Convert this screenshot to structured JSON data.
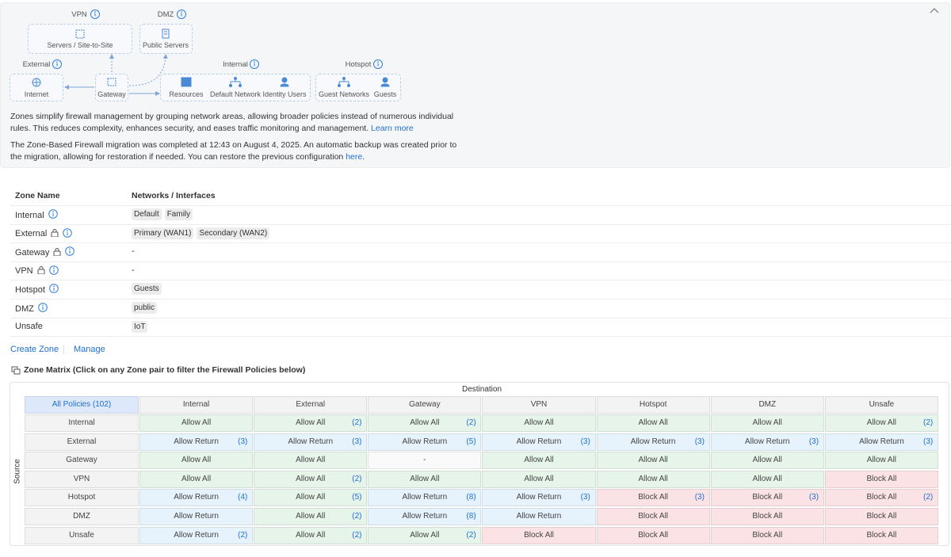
{
  "diagram": {
    "vpn": {
      "label": "VPN",
      "item": "Servers / Site-to-Site"
    },
    "dmz": {
      "label": "DMZ",
      "item": "Public Servers"
    },
    "external": {
      "label": "External",
      "item": "Internet"
    },
    "gateway": {
      "item": "Gateway"
    },
    "internal": {
      "label": "Internal",
      "items": [
        "Resources",
        "Default Network",
        "Identity Users"
      ]
    },
    "hotspot": {
      "label": "Hotspot",
      "items": [
        "Guest Networks",
        "Guests"
      ]
    }
  },
  "intro": {
    "text": "Zones simplify firewall management by grouping network areas, allowing broader policies instead of numerous individual rules. This reduces complexity, enhances security, and eases traffic monitoring and management.",
    "link": "Learn more"
  },
  "migration": {
    "text": "The Zone-Based Firewall migration was completed at 12:43 on August 4, 2025. An automatic backup was created prior to the migration, allowing for restoration if needed. You can restore the previous configuration",
    "link": "here",
    "after": "."
  },
  "zones": {
    "headers": [
      "Zone Name",
      "Networks / Interfaces"
    ],
    "rows": [
      {
        "name": "Internal",
        "locked": false,
        "info": true,
        "networks": [
          "Default",
          "Family"
        ]
      },
      {
        "name": "External",
        "locked": true,
        "info": true,
        "networks": [
          "Primary (WAN1)",
          "Secondary (WAN2)"
        ]
      },
      {
        "name": "Gateway",
        "locked": true,
        "info": true,
        "networks": "-"
      },
      {
        "name": "VPN",
        "locked": true,
        "info": true,
        "networks": "-"
      },
      {
        "name": "Hotspot",
        "locked": false,
        "info": true,
        "networks": [
          "Guests"
        ]
      },
      {
        "name": "DMZ",
        "locked": false,
        "info": true,
        "networks": [
          "public"
        ]
      },
      {
        "name": "Unsafe",
        "locked": false,
        "info": false,
        "networks": [
          "IoT"
        ]
      }
    ]
  },
  "actions": [
    "Create Zone",
    "Manage"
  ],
  "matrix": {
    "title": "Zone Matrix (Click on any Zone pair to filter the Firewall Policies below)",
    "all_policies": "All Policies (102)",
    "destination": "Destination",
    "source": "Source",
    "columns": [
      "Internal",
      "External",
      "Gateway",
      "VPN",
      "Hotspot",
      "DMZ",
      "Unsafe"
    ],
    "rows": [
      {
        "name": "Internal",
        "cells": [
          {
            "label": "Allow All",
            "color": "#e6f4e9"
          },
          {
            "label": "Allow All",
            "count": "(2)",
            "color": "#e6f4e9"
          },
          {
            "label": "Allow All",
            "count": "(2)",
            "color": "#e6f4e9"
          },
          {
            "label": "Allow All",
            "color": "#e6f4e9"
          },
          {
            "label": "Allow All",
            "color": "#e6f4e9"
          },
          {
            "label": "Allow All",
            "color": "#e6f4e9"
          },
          {
            "label": "Allow All",
            "count": "(2)",
            "color": "#e6f4e9"
          }
        ]
      },
      {
        "name": "External",
        "cells": [
          {
            "label": "Allow Return",
            "count": "(3)",
            "color": "#e6f2fc"
          },
          {
            "label": "Allow Return",
            "count": "(3)",
            "color": "#e6f2fc"
          },
          {
            "label": "Allow Return",
            "count": "(5)",
            "color": "#e6f2fc"
          },
          {
            "label": "Allow Return",
            "count": "(3)",
            "color": "#e6f2fc"
          },
          {
            "label": "Allow Return",
            "count": "(3)",
            "color": "#e6f2fc"
          },
          {
            "label": "Allow Return",
            "count": "(3)",
            "color": "#e6f2fc"
          },
          {
            "label": "Allow Return",
            "count": "(3)",
            "color": "#e6f2fc"
          }
        ]
      },
      {
        "name": "Gateway",
        "cells": [
          {
            "label": "Allow All",
            "color": "#e6f4e9"
          },
          {
            "label": "Allow All",
            "color": "#e6f4e9"
          },
          {
            "label": "-",
            "color": "#fafafa"
          },
          {
            "label": "Allow All",
            "color": "#e6f4e9"
          },
          {
            "label": "Allow All",
            "color": "#e6f4e9"
          },
          {
            "label": "Allow All",
            "color": "#e6f4e9"
          },
          {
            "label": "Allow All",
            "color": "#e6f4e9"
          }
        ]
      },
      {
        "name": "VPN",
        "cells": [
          {
            "label": "Allow All",
            "color": "#e6f4e9"
          },
          {
            "label": "Allow All",
            "count": "(2)",
            "color": "#e6f4e9"
          },
          {
            "label": "Allow All",
            "color": "#e6f4e9"
          },
          {
            "label": "Allow All",
            "color": "#e6f4e9"
          },
          {
            "label": "Allow All",
            "color": "#e6f4e9"
          },
          {
            "label": "Allow All",
            "color": "#e6f4e9"
          },
          {
            "label": "Block All",
            "color": "#fbe3e5"
          }
        ]
      },
      {
        "name": "Hotspot",
        "cells": [
          {
            "label": "Allow Return",
            "count": "(4)",
            "color": "#e6f2fc"
          },
          {
            "label": "Allow All",
            "count": "(5)",
            "color": "#e6f4e9"
          },
          {
            "label": "Allow Return",
            "count": "(8)",
            "color": "#e6f2fc"
          },
          {
            "label": "Allow Return",
            "count": "(3)",
            "color": "#e6f2fc"
          },
          {
            "label": "Block All",
            "count": "(3)",
            "color": "#fbe3e5"
          },
          {
            "label": "Block All",
            "count": "(3)",
            "color": "#fbe3e5"
          },
          {
            "label": "Block All",
            "count": "(2)",
            "color": "#fbe3e5"
          }
        ]
      },
      {
        "name": "DMZ",
        "cells": [
          {
            "label": "Allow Return",
            "color": "#e6f2fc"
          },
          {
            "label": "Allow All",
            "count": "(2)",
            "color": "#e6f4e9"
          },
          {
            "label": "Allow Return",
            "count": "(8)",
            "color": "#e6f2fc"
          },
          {
            "label": "Allow Return",
            "color": "#e6f2fc"
          },
          {
            "label": "Block All",
            "color": "#fbe3e5"
          },
          {
            "label": "Block All",
            "color": "#fbe3e5"
          },
          {
            "label": "Block All",
            "color": "#fbe3e5"
          }
        ]
      },
      {
        "name": "Unsafe",
        "cells": [
          {
            "label": "Allow Return",
            "count": "(2)",
            "color": "#e6f2fc"
          },
          {
            "label": "Allow All",
            "count": "(2)",
            "color": "#e6f4e9"
          },
          {
            "label": "Allow All",
            "count": "(2)",
            "color": "#e6f4e9"
          },
          {
            "label": "Block All",
            "color": "#fbe3e5"
          },
          {
            "label": "Block All",
            "color": "#fbe3e5"
          },
          {
            "label": "Block All",
            "color": "#fbe3e5"
          },
          {
            "label": "Block All",
            "color": "#fbe3e5"
          }
        ]
      }
    ]
  }
}
